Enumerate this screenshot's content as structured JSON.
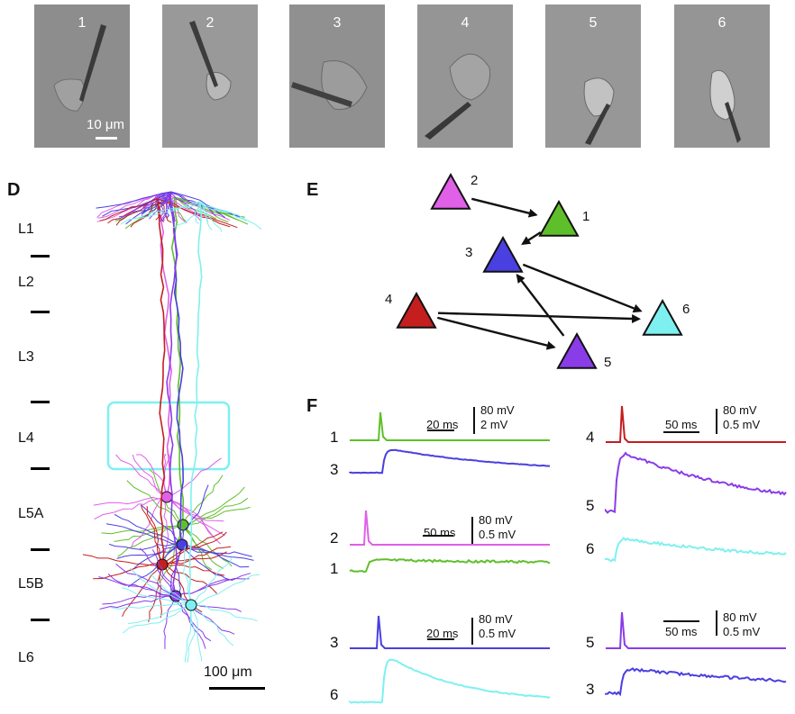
{
  "micrographs": [
    {
      "label": "1"
    },
    {
      "label": "2"
    },
    {
      "label": "3"
    },
    {
      "label": "4"
    },
    {
      "label": "5"
    },
    {
      "label": "6"
    }
  ],
  "micro_scalebar": "10 μm",
  "panels": {
    "d": "D",
    "e": "E",
    "f": "F"
  },
  "layers": [
    "L1",
    "L2",
    "L3",
    "L4",
    "L5A",
    "L5B",
    "L6"
  ],
  "morph_scalebar": "100 μm",
  "neuron_colors": {
    "1": "#5fbf2a",
    "2": "#e060e8",
    "3": "#4a3fe0",
    "4": "#c41e1e",
    "5": "#8a3ce8",
    "6": "#7ff0f0"
  },
  "network": {
    "nodes": [
      "1",
      "2",
      "3",
      "4",
      "5",
      "6"
    ],
    "edges": [
      [
        "2",
        "1"
      ],
      [
        "1",
        "3"
      ],
      [
        "3",
        "6"
      ],
      [
        "4",
        "6"
      ],
      [
        "4",
        "5"
      ],
      [
        "5",
        "3"
      ]
    ]
  },
  "recordings": [
    {
      "pre": "1",
      "post": "3",
      "time": "20 ms",
      "pre_amp": "80 mV",
      "post_amp": "2 mV"
    },
    {
      "pre": "2",
      "post": "1",
      "time": "50 ms",
      "pre_amp": "80 mV",
      "post_amp": "0.5 mV"
    },
    {
      "pre": "3",
      "post": "6",
      "time": "20 ms",
      "pre_amp": "80 mV",
      "post_amp": "0.5 mV"
    },
    {
      "pre": "4",
      "post": "5",
      "post2": "6",
      "time": "50 ms",
      "pre_amp": "80 mV",
      "post_amp": "0.5 mV"
    },
    {
      "pre": "5",
      "post": "3",
      "time": "50 ms",
      "pre_amp": "80 mV",
      "post_amp": "0.5 mV"
    }
  ]
}
